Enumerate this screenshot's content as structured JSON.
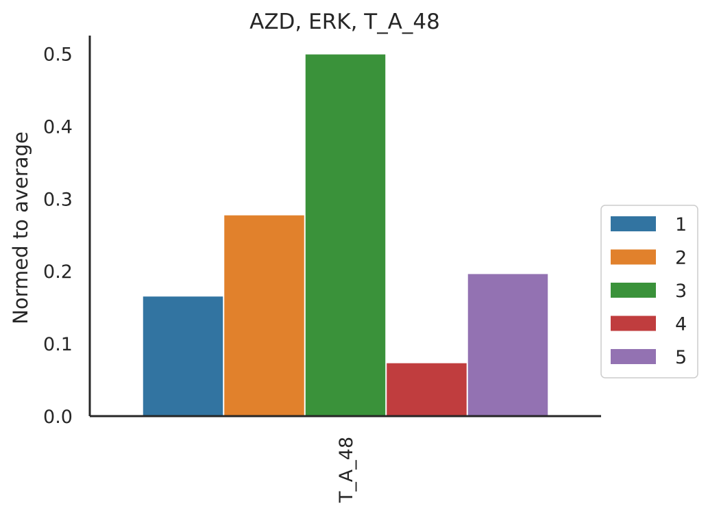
{
  "chart_data": {
    "type": "bar",
    "title": "AZD, ERK, T_A_48",
    "ylabel": "Normed to average",
    "xlabel": "",
    "categories": [
      "T_A_48"
    ],
    "ylim": [
      0,
      0.525
    ],
    "yticks": [
      "0.0",
      "0.1",
      "0.2",
      "0.3",
      "0.4",
      "0.5"
    ],
    "grid": false,
    "legend_position": "right",
    "series": [
      {
        "name": "1",
        "color": "#3274a1",
        "values": [
          0.165
        ]
      },
      {
        "name": "2",
        "color": "#e1812c",
        "values": [
          0.277
        ]
      },
      {
        "name": "3",
        "color": "#3a923a",
        "values": [
          0.499
        ]
      },
      {
        "name": "4",
        "color": "#c03d3e",
        "values": [
          0.073
        ]
      },
      {
        "name": "5",
        "color": "#9372b2",
        "values": [
          0.196
        ]
      }
    ]
  }
}
